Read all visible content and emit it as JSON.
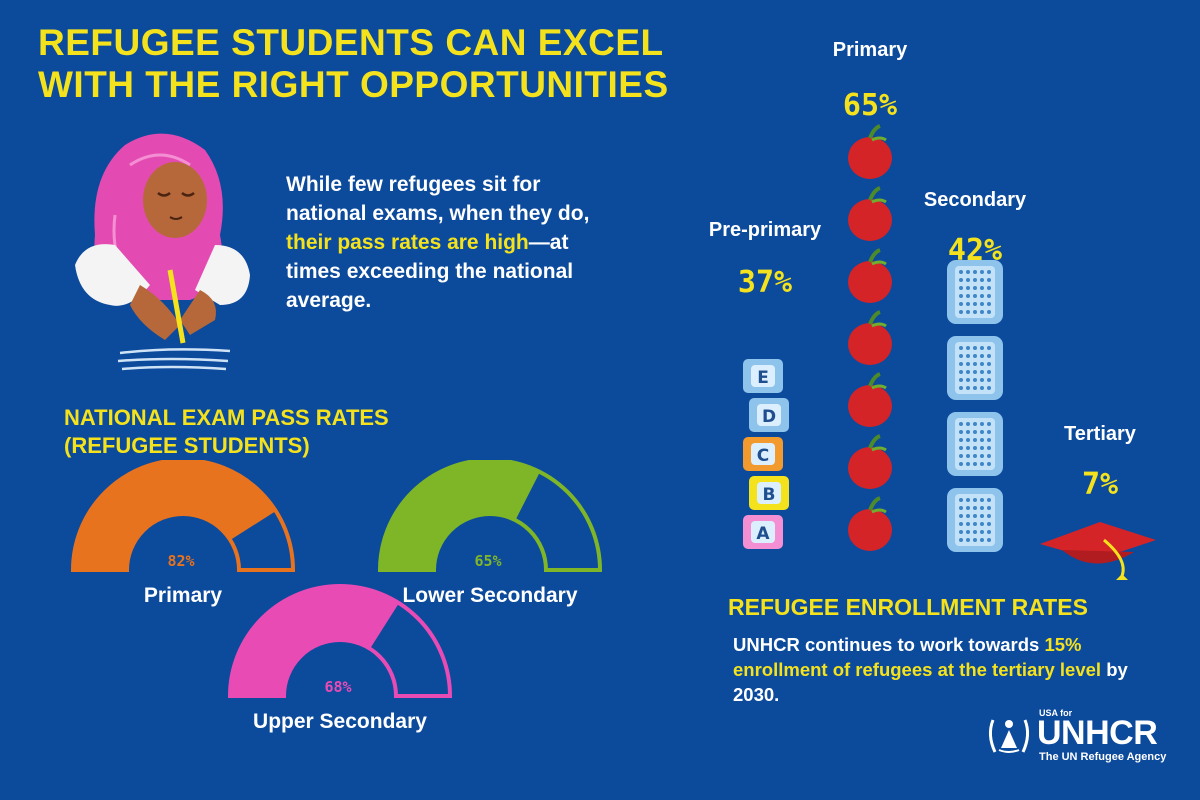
{
  "title_line1": "REFUGEE STUDENTS CAN EXCEL",
  "title_line2": "WITH THE RIGHT OPPORTUNITIES",
  "intro": {
    "part1": "While few refugees sit for national exams, when they do, ",
    "highlight": "their pass rates are high",
    "part2": "—at times exceeding the national average."
  },
  "exam_section": {
    "title_line1": "NATIONAL EXAM PASS RATES",
    "title_line2": "(REFUGEE STUDENTS)"
  },
  "enrollment_section": {
    "title": "REFUGEE ENROLLMENT RATES",
    "note_part1": "UNHCR continues to work towards ",
    "note_highlight": "15% enrollment of refugees at the tertiary level",
    "note_part2": " by 2030."
  },
  "logo": {
    "small": "USA for",
    "name": "UNHCR",
    "sub": "The UN Refugee Agency"
  },
  "colors": {
    "background": "#0c4a9c",
    "accent_yellow": "#f4e21d",
    "gauge_primary": "#e8731e",
    "gauge_lower_secondary": "#7fb627",
    "gauge_upper_secondary": "#e94bb4",
    "apple_red": "#d42428",
    "calculator_blue": "#8ec3ec"
  },
  "chart_data": [
    {
      "type": "gauge",
      "title": "NATIONAL EXAM PASS RATES (REFUGEE STUDENTS)",
      "categories": [
        "Primary",
        "Lower Secondary",
        "Upper Secondary"
      ],
      "values": [
        82,
        65,
        68
      ],
      "value_labels": [
        "82%",
        "65%",
        "68%"
      ],
      "unit": "%",
      "range": [
        0,
        100
      ]
    },
    {
      "type": "bar",
      "title": "REFUGEE ENROLLMENT RATES",
      "categories": [
        "Pre-primary",
        "Primary",
        "Secondary",
        "Tertiary"
      ],
      "values": [
        37,
        65,
        42,
        7
      ],
      "value_labels": [
        "37%",
        "65%",
        "42%",
        "7%"
      ],
      "icons": [
        "alphabet-block-icon",
        "apple-icon",
        "calculator-icon",
        "graduation-cap-icon"
      ],
      "icon_counts": [
        5,
        7,
        4,
        1
      ],
      "block_letters": [
        "E",
        "D",
        "C",
        "B",
        "A"
      ],
      "unit": "%"
    }
  ]
}
